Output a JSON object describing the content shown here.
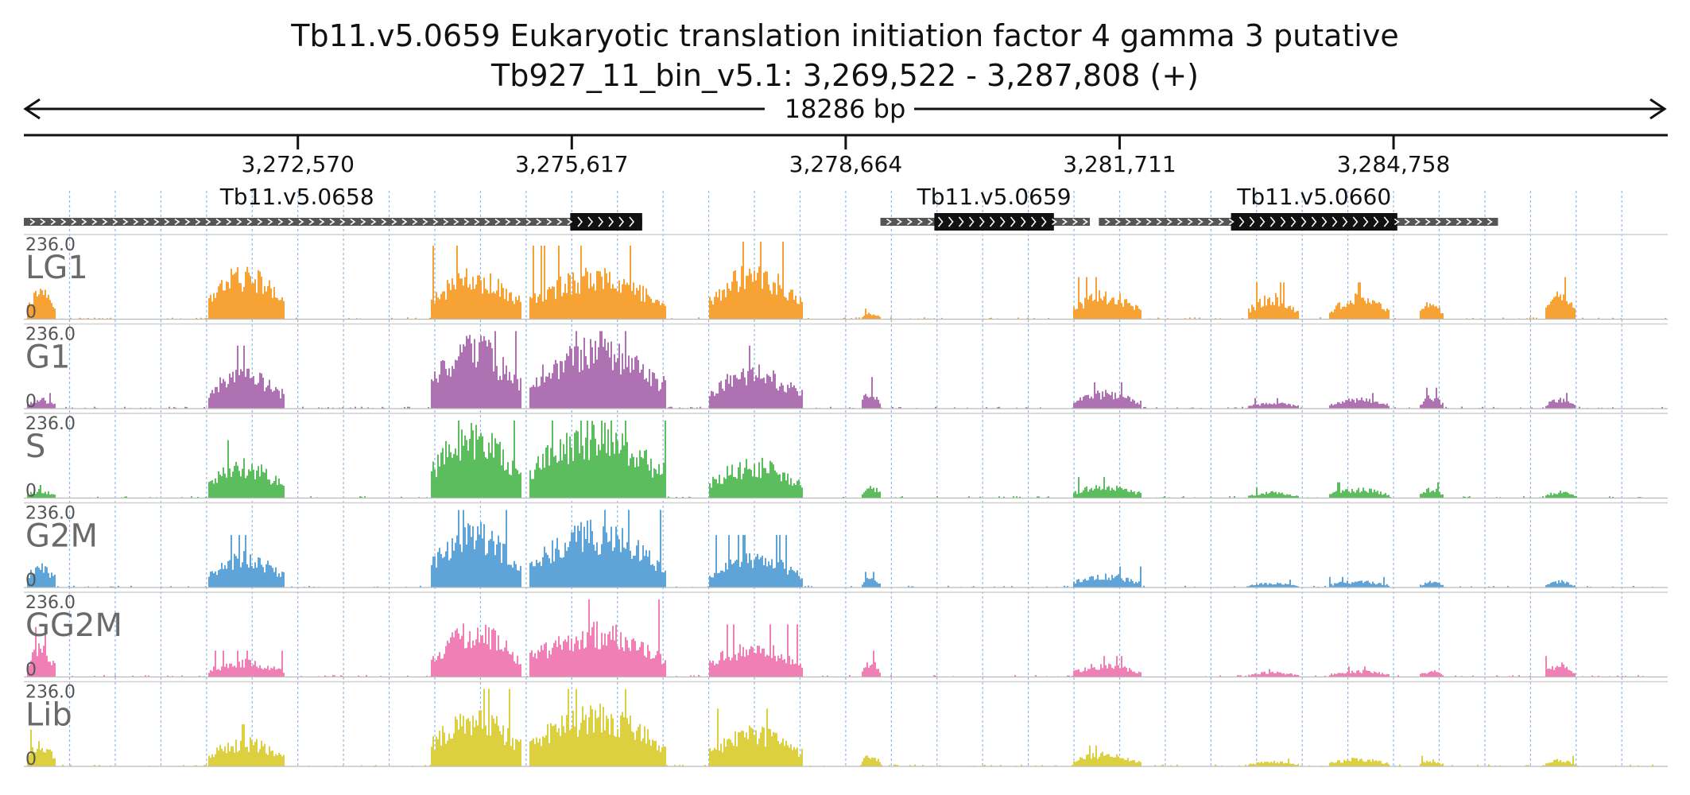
{
  "title": "Tb11.v5.0659  Eukaryotic translation initiation factor 4 gamma 3  putative",
  "subtitle": "Tb927_11_bin_v5.1: 3,269,522 - 3,287,808 (+)",
  "span_label": "18286 bp",
  "chart_data": {
    "type": "area",
    "region": {
      "chrom": "Tb927_11_bin_v5.1",
      "start": 3269522,
      "end": 3287808,
      "strand": "+"
    },
    "xlim": [
      3269522,
      3287808
    ],
    "x_ticks": [
      3272570,
      3275617,
      3278664,
      3281711,
      3284758
    ],
    "x_tick_labels": [
      "3,272,570",
      "3,275,617",
      "3,278,664",
      "3,281,711",
      "3,284,758"
    ],
    "grid": true,
    "genes": [
      {
        "name": "Tb11.v5.0658",
        "start": 3269522,
        "end": 3276400,
        "cds": [
          3275600,
          3276400
        ],
        "strand": "+"
      },
      {
        "name": "Tb11.v5.0659",
        "start": 3279050,
        "end": 3281380,
        "cds": [
          3279650,
          3280980
        ],
        "strand": "+"
      },
      {
        "name": "Tb11.v5.0660",
        "start": 3281480,
        "end": 3285920,
        "cds": [
          3282950,
          3284800
        ],
        "strand": "+"
      }
    ],
    "tracks": [
      {
        "name": "LG1",
        "color": "#f7a234",
        "ylim": [
          0,
          236.0
        ],
        "ymax_label": "236.0",
        "ymin_label": "0"
      },
      {
        "name": "G1",
        "color": "#ae72b3",
        "ylim": [
          0,
          236.0
        ],
        "ymax_label": "236.0",
        "ymin_label": "0"
      },
      {
        "name": "S",
        "color": "#5cbd5e",
        "ylim": [
          0,
          236.0
        ],
        "ymax_label": "236.0",
        "ymin_label": "0"
      },
      {
        "name": "G2M",
        "color": "#5ea4d9",
        "ylim": [
          0,
          236.0
        ],
        "ymax_label": "236.0",
        "ymin_label": "0"
      },
      {
        "name": "GG2M",
        "color": "#f07fb6",
        "ylim": [
          0,
          236.0
        ],
        "ymax_label": "236.0",
        "ymin_label": "0"
      },
      {
        "name": "Lib",
        "color": "#dcd040",
        "ylim": [
          0,
          236.0
        ],
        "ymax_label": "236.0",
        "ymin_label": "0"
      }
    ],
    "coverage_blocks": [
      {
        "start": 3269560,
        "end": 3269870,
        "levels": [
          85,
          30,
          25,
          80,
          95,
          70
        ]
      },
      {
        "start": 3271580,
        "end": 3272420,
        "levels": [
          150,
          120,
          110,
          100,
          50,
          80
        ]
      },
      {
        "start": 3274050,
        "end": 3275050,
        "levels": [
          140,
          200,
          210,
          180,
          150,
          170
        ]
      },
      {
        "start": 3275150,
        "end": 3276650,
        "levels": [
          140,
          200,
          210,
          180,
          150,
          170
        ]
      },
      {
        "start": 3277150,
        "end": 3278180,
        "levels": [
          150,
          120,
          110,
          100,
          100,
          110
        ]
      },
      {
        "start": 3278850,
        "end": 3279050,
        "levels": [
          20,
          60,
          40,
          30,
          50,
          40
        ]
      },
      {
        "start": 3281200,
        "end": 3281950,
        "levels": [
          80,
          50,
          40,
          40,
          40,
          40
        ]
      },
      {
        "start": 3283150,
        "end": 3283700,
        "levels": [
          70,
          20,
          20,
          15,
          15,
          15
        ]
      },
      {
        "start": 3284050,
        "end": 3284700,
        "levels": [
          70,
          30,
          30,
          20,
          20,
          25
        ]
      },
      {
        "start": 3285050,
        "end": 3285300,
        "levels": [
          60,
          40,
          30,
          20,
          20,
          20
        ]
      },
      {
        "start": 3286450,
        "end": 3286780,
        "levels": [
          80,
          30,
          20,
          20,
          40,
          20
        ]
      }
    ]
  }
}
